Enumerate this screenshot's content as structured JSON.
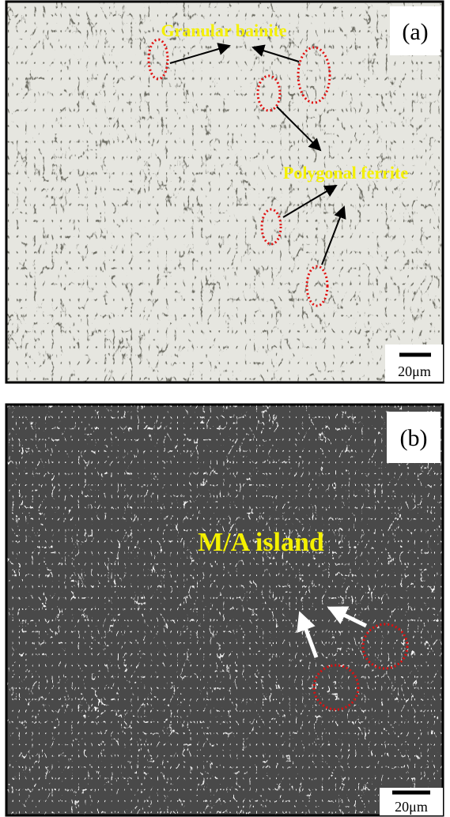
{
  "panels": [
    {
      "label": "(a)",
      "annotations": [
        "Granular bainite",
        "Polygonal ferrite"
      ],
      "scale_bar": "20μm"
    },
    {
      "label": "(b)",
      "annotations": [
        "M/A island"
      ],
      "scale_bar": "20μm"
    }
  ]
}
